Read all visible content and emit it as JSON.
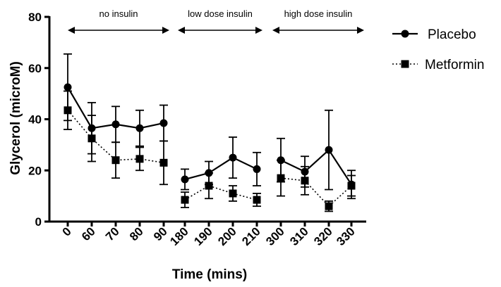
{
  "chart_data": {
    "type": "line",
    "title": "",
    "xlabel": "Time (mins)",
    "ylabel": "Glycerol (microM)",
    "ylim": [
      0,
      80
    ],
    "yticks": [
      "0",
      "20",
      "40",
      "60",
      "80"
    ],
    "categories": [
      "0",
      "60",
      "70",
      "80",
      "90",
      "180",
      "190",
      "200",
      "210",
      "300",
      "310",
      "320",
      "330"
    ],
    "segments": [
      [
        0,
        4
      ],
      [
        5,
        8
      ],
      [
        9,
        12
      ]
    ],
    "periods": [
      {
        "label": "no insulin",
        "from": 0,
        "to": 4
      },
      {
        "label": "low dose insulin",
        "from": 5,
        "to": 8
      },
      {
        "label": "high dose insulin",
        "from": 9,
        "to": 12
      }
    ],
    "legend_position": "top-right",
    "grid": false,
    "series": [
      {
        "name": "Placebo",
        "marker": "circle",
        "line": "solid",
        "values": [
          52.5,
          36.5,
          38,
          36.5,
          38.5,
          16.5,
          19,
          25,
          20.5,
          24,
          19.5,
          28,
          14.5
        ],
        "errors": [
          13,
          10,
          7,
          7,
          7,
          4,
          4.5,
          8,
          6.5,
          8.5,
          6,
          15.5,
          5.5
        ]
      },
      {
        "name": "Metformin",
        "marker": "square",
        "line": "dotted",
        "values": [
          43.5,
          32.5,
          24,
          24.5,
          23,
          8.5,
          14,
          11,
          8.5,
          17,
          16,
          6,
          14
        ],
        "errors": [
          7.5,
          9,
          7,
          4.5,
          8.5,
          3,
          5,
          3,
          2.5,
          7,
          5.5,
          2,
          4
        ]
      }
    ]
  }
}
